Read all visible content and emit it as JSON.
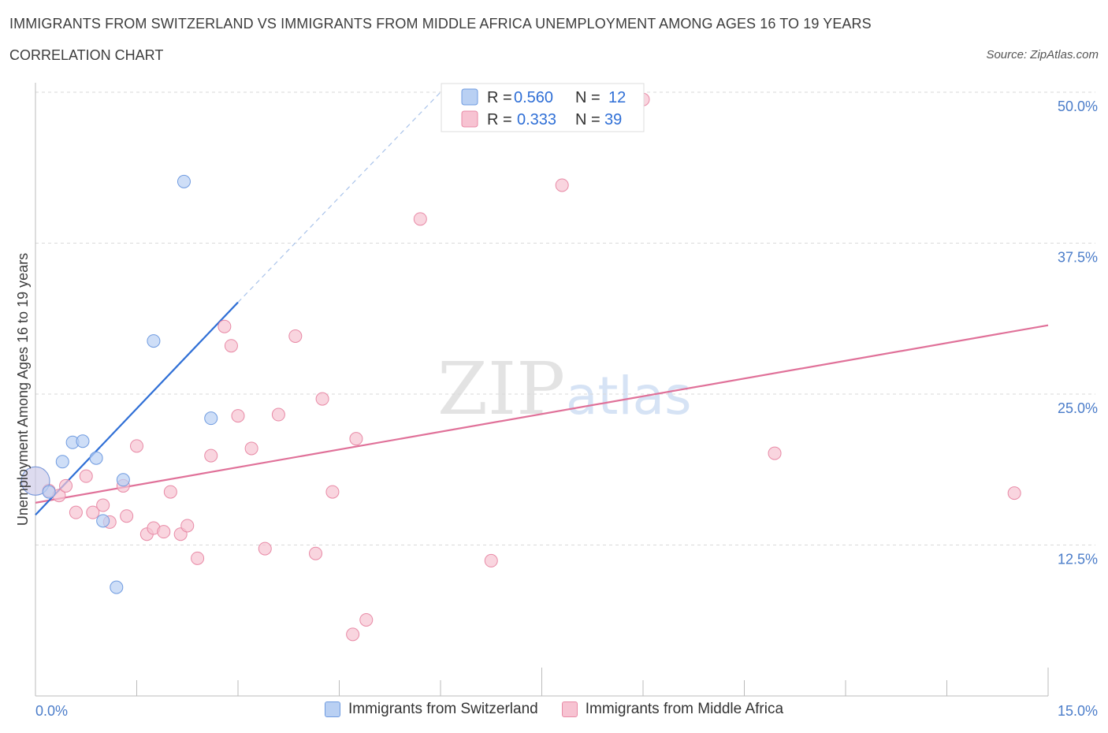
{
  "title": "IMMIGRANTS FROM SWITZERLAND VS IMMIGRANTS FROM MIDDLE AFRICA UNEMPLOYMENT AMONG AGES 16 TO 19 YEARS",
  "subtitle": "CORRELATION CHART",
  "source": "Source: ZipAtlas.com",
  "watermark": {
    "zip": "ZIP",
    "atlas": "atlas"
  },
  "colors": {
    "blue_fill": "#b9d0f3",
    "blue_stroke": "#6f9be0",
    "blue_line": "#2f6fd6",
    "pink_fill": "#f7c3d2",
    "pink_stroke": "#e88aa6",
    "pink_line": "#e07199",
    "tick_text": "#4a7cc9",
    "grid": "#d9d9d9"
  },
  "legend": {
    "rows": [
      {
        "r_label": "R = ",
        "r_value": "0.560",
        "n_label": "N = ",
        "n_value": "12"
      },
      {
        "r_label": "R = ",
        "r_value": "0.333",
        "n_label": "N = ",
        "n_value": "39"
      }
    ]
  },
  "chart_data": {
    "type": "scatter",
    "title": "IMMIGRANTS FROM SWITZERLAND VS IMMIGRANTS FROM MIDDLE AFRICA UNEMPLOYMENT AMONG AGES 16 TO 19 YEARS",
    "subtitle": "CORRELATION CHART",
    "xlabel": "",
    "ylabel": "Unemployment Among Ages 16 to 19 years",
    "xlim": [
      0,
      15
    ],
    "ylim": [
      0,
      50
    ],
    "x_tick_labels": [
      "0.0%",
      "15.0%"
    ],
    "y_ticks": [
      12.5,
      25.0,
      37.5,
      50.0
    ],
    "y_tick_labels": [
      "12.5%",
      "25.0%",
      "37.5%",
      "50.0%"
    ],
    "grid": true,
    "legend_position": "bottom",
    "series": [
      {
        "name": "Immigrants from Switzerland",
        "color": "#6f9be0",
        "points": [
          [
            0.0,
            17.8
          ],
          [
            0.2,
            16.9
          ],
          [
            0.4,
            19.4
          ],
          [
            0.55,
            21.0
          ],
          [
            0.7,
            21.1
          ],
          [
            0.9,
            19.7
          ],
          [
            1.0,
            14.5
          ],
          [
            1.3,
            17.9
          ],
          [
            1.2,
            9.0
          ],
          [
            1.75,
            29.4
          ],
          [
            2.2,
            42.6
          ],
          [
            2.6,
            23.0
          ]
        ],
        "trend": {
          "x": [
            0,
            3.0
          ],
          "y": [
            15.0,
            32.6
          ],
          "dashed_extension": {
            "x": [
              3.0,
              6.0
            ],
            "y": [
              32.6,
              50.0
            ]
          }
        }
      },
      {
        "name": "Immigrants from Middle Africa",
        "color": "#e88aa6",
        "points": [
          [
            0.0,
            17.8
          ],
          [
            0.2,
            17.0
          ],
          [
            0.35,
            16.6
          ],
          [
            0.45,
            17.4
          ],
          [
            0.6,
            15.2
          ],
          [
            0.75,
            18.2
          ],
          [
            0.85,
            15.2
          ],
          [
            1.0,
            15.8
          ],
          [
            1.1,
            14.4
          ],
          [
            1.3,
            17.4
          ],
          [
            1.35,
            14.9
          ],
          [
            1.5,
            20.7
          ],
          [
            1.65,
            13.4
          ],
          [
            1.75,
            13.9
          ],
          [
            1.9,
            13.6
          ],
          [
            2.0,
            16.9
          ],
          [
            2.15,
            13.4
          ],
          [
            2.25,
            14.1
          ],
          [
            2.4,
            11.4
          ],
          [
            2.6,
            19.9
          ],
          [
            2.8,
            30.6
          ],
          [
            2.9,
            29.0
          ],
          [
            3.0,
            23.2
          ],
          [
            3.2,
            20.5
          ],
          [
            3.4,
            12.2
          ],
          [
            3.6,
            23.3
          ],
          [
            3.85,
            29.8
          ],
          [
            4.15,
            11.8
          ],
          [
            4.25,
            24.6
          ],
          [
            4.4,
            16.9
          ],
          [
            4.75,
            21.3
          ],
          [
            4.7,
            5.1
          ],
          [
            4.9,
            6.3
          ],
          [
            5.7,
            39.5
          ],
          [
            6.75,
            11.2
          ],
          [
            7.8,
            42.3
          ],
          [
            9.0,
            49.4
          ],
          [
            10.95,
            20.1
          ],
          [
            14.5,
            16.8
          ]
        ],
        "trend": {
          "x": [
            0,
            15
          ],
          "y": [
            16.0,
            30.7
          ]
        }
      }
    ]
  }
}
